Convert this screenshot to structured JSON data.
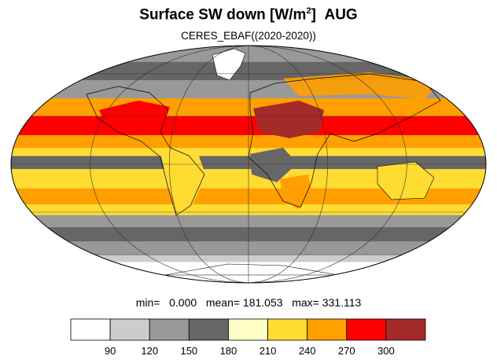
{
  "title": {
    "main": "Surface SW down [W/m",
    "sup": "2",
    "close": "]",
    "month": "AUG"
  },
  "subtitle": "CERES_EBAF((2020-2020))",
  "stats": {
    "min_label": "min=",
    "min": "0.000",
    "mean_label": "mean=",
    "mean": "181.053",
    "max_label": "max=",
    "max": "331.113"
  },
  "colorbar": {
    "levels": [
      "90",
      "120",
      "150",
      "180",
      "210",
      "240",
      "270",
      "300"
    ],
    "colors": [
      "#ffffff",
      "#cccccc",
      "#999999",
      "#666666",
      "#ffffc8",
      "#ffdc32",
      "#ffa000",
      "#ff0000",
      "#a52a2a"
    ]
  },
  "map": {
    "projection": "mollweide",
    "ocean_default": "#999999",
    "bands": [
      {
        "lat": [
          70,
          90
        ],
        "color": "#999999"
      },
      {
        "lat": [
          55,
          70
        ],
        "color": "#666666"
      },
      {
        "lat": [
          42,
          55
        ],
        "color": "#999999"
      },
      {
        "lat": [
          30,
          42
        ],
        "color": "#ffa000"
      },
      {
        "lat": [
          18,
          30
        ],
        "color": "#ff0000"
      },
      {
        "lat": [
          10,
          18
        ],
        "color": "#ffa000"
      },
      {
        "lat": [
          5,
          10
        ],
        "color": "#ffdc32"
      },
      {
        "lat": [
          -3,
          5
        ],
        "color": "#666666"
      },
      {
        "lat": [
          -15,
          -3
        ],
        "color": "#ffdc32"
      },
      {
        "lat": [
          -25,
          -15
        ],
        "color": "#ffa000"
      },
      {
        "lat": [
          -32,
          -25
        ],
        "color": "#ffdc32"
      },
      {
        "lat": [
          -40,
          -32
        ],
        "color": "#999999"
      },
      {
        "lat": [
          -50,
          -40
        ],
        "color": "#666666"
      },
      {
        "lat": [
          -60,
          -50
        ],
        "color": "#999999"
      },
      {
        "lat": [
          -66,
          -60
        ],
        "color": "#cccccc"
      },
      {
        "lat": [
          -90,
          -66
        ],
        "color": "#ffffff"
      }
    ]
  }
}
